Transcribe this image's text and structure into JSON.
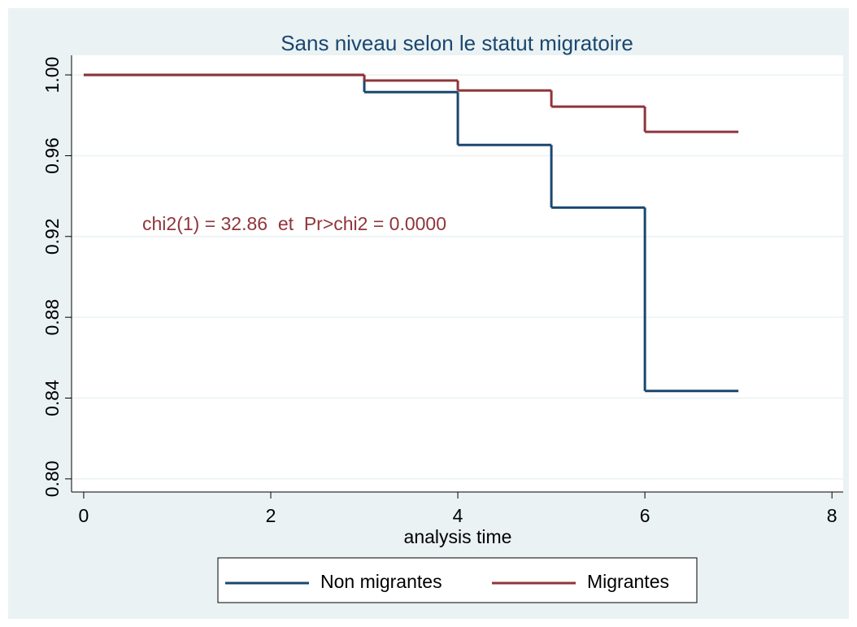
{
  "chart_data": {
    "type": "step",
    "title": "Sans niveau selon le statut migratoire",
    "xlabel": "analysis time",
    "annotation": "chi2(1) = 32.86  et  Pr>chi2 = 0.0000",
    "annotation_color": "#90353b",
    "x": [
      0,
      3,
      4,
      5,
      6,
      7
    ],
    "series": [
      {
        "name": "Non migrantes",
        "color": "#1a476f",
        "values": [
          1.0,
          0.9915,
          0.9653,
          0.9343,
          0.8435,
          0.8435
        ]
      },
      {
        "name": "Migrantes",
        "color": "#90353b",
        "values": [
          1.0,
          0.9972,
          0.9923,
          0.9843,
          0.9718,
          0.9718
        ]
      }
    ],
    "xlim": [
      -0.13,
      8.12
    ],
    "ylim": [
      0.7935,
      1.0097
    ],
    "xticks": [
      0,
      2,
      4,
      6,
      8
    ],
    "yticks": [
      {
        "value": 0.8,
        "label": "0.80"
      },
      {
        "value": 0.84,
        "label": "0.84"
      },
      {
        "value": 0.88,
        "label": "0.88"
      },
      {
        "value": 0.92,
        "label": "0.92"
      },
      {
        "value": 0.96,
        "label": "0.96"
      },
      {
        "value": 1.0,
        "label": "1.00"
      }
    ],
    "grid": true,
    "legend": "bottom"
  }
}
